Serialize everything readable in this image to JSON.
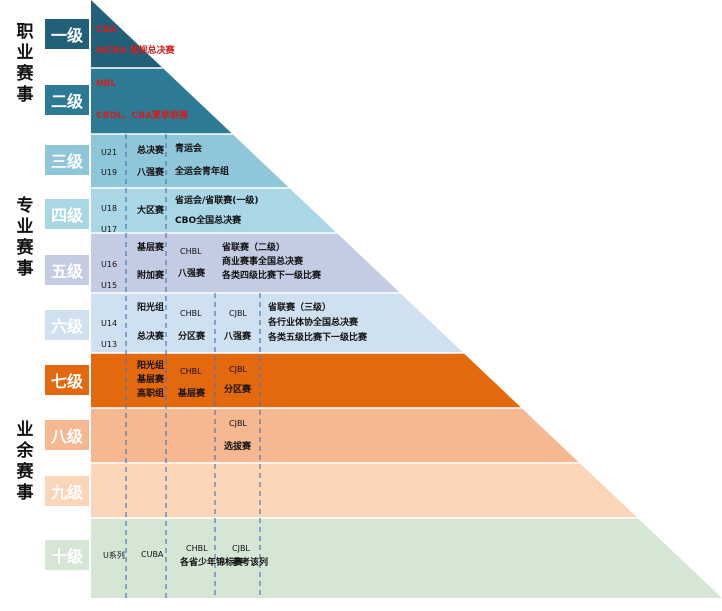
{
  "categories": [
    "职业赛事",
    "专业赛事",
    "业余赛事"
  ],
  "levels": [
    {
      "label": "一级",
      "color": "#22607a"
    },
    {
      "label": "二级",
      "color": "#2c7a93"
    },
    {
      "label": "三级",
      "color": "#8fc6da"
    },
    {
      "label": "四级",
      "color": "#a9d7e6"
    },
    {
      "label": "五级",
      "color": "#c3cce3"
    },
    {
      "label": "六级",
      "color": "#cfe0f0"
    },
    {
      "label": "七级",
      "color": "#e3680e"
    },
    {
      "label": "八级",
      "color": "#f6b890"
    },
    {
      "label": "九级",
      "color": "#fbd5b7"
    },
    {
      "label": "十级",
      "color": "#d6e6d5"
    }
  ],
  "cells": {
    "l1": {
      "a": "CBA",
      "b": "WCBA 常规总决赛"
    },
    "l2": {
      "a": "NBL",
      "b": "CBDL、CBA夏季联赛"
    },
    "l3": {
      "age_a": "U21",
      "age_b": "U19",
      "c2a": "总决赛",
      "c2b": "八强赛",
      "c3a": "青运会",
      "c3b": "全运会青年组"
    },
    "l4": {
      "age_a": "U18",
      "age_b": "U17",
      "c2": "大区赛",
      "c3a": "省运会/省联赛(一级)",
      "c3b": "CBO全国总决赛"
    },
    "l5": {
      "age_a": "U16",
      "age_b": "U15",
      "c2a": "基层赛",
      "c2b": "附加赛",
      "c3a": "CHBL",
      "c3b": "八强赛",
      "c4a": "省联赛（二级）",
      "c4b": "商业赛事全国总决赛",
      "c4c": "各类四级比赛下一级比赛"
    },
    "l6": {
      "age_a": "U14",
      "age_b": "U13",
      "c2a": "阳光组",
      "c2b": "总决赛",
      "c3a": "CHBL",
      "c3b": "分区赛",
      "c4a": "CJBL",
      "c4b": "八强赛",
      "c5a": "省联赛（三级）",
      "c5b": "各行业体协全国总决赛",
      "c5c": "各类五级比赛下一级比赛"
    },
    "l7": {
      "c2a": "阳光组",
      "c2b": "基层赛",
      "c2c": "高职组",
      "c3a": "CHBL",
      "c3b": "基层赛",
      "c4a": "CJBL",
      "c4b": "分区赛"
    },
    "l8": {
      "c4a": "CJBL",
      "c4b": "选拔赛"
    },
    "l10": {
      "c1": "U系列",
      "c2": "CUBA",
      "c3a": "CHBL",
      "c3b": "各省少年锦标赛",
      "c4a": "CJBL",
      "c4b": "参考该列"
    }
  }
}
